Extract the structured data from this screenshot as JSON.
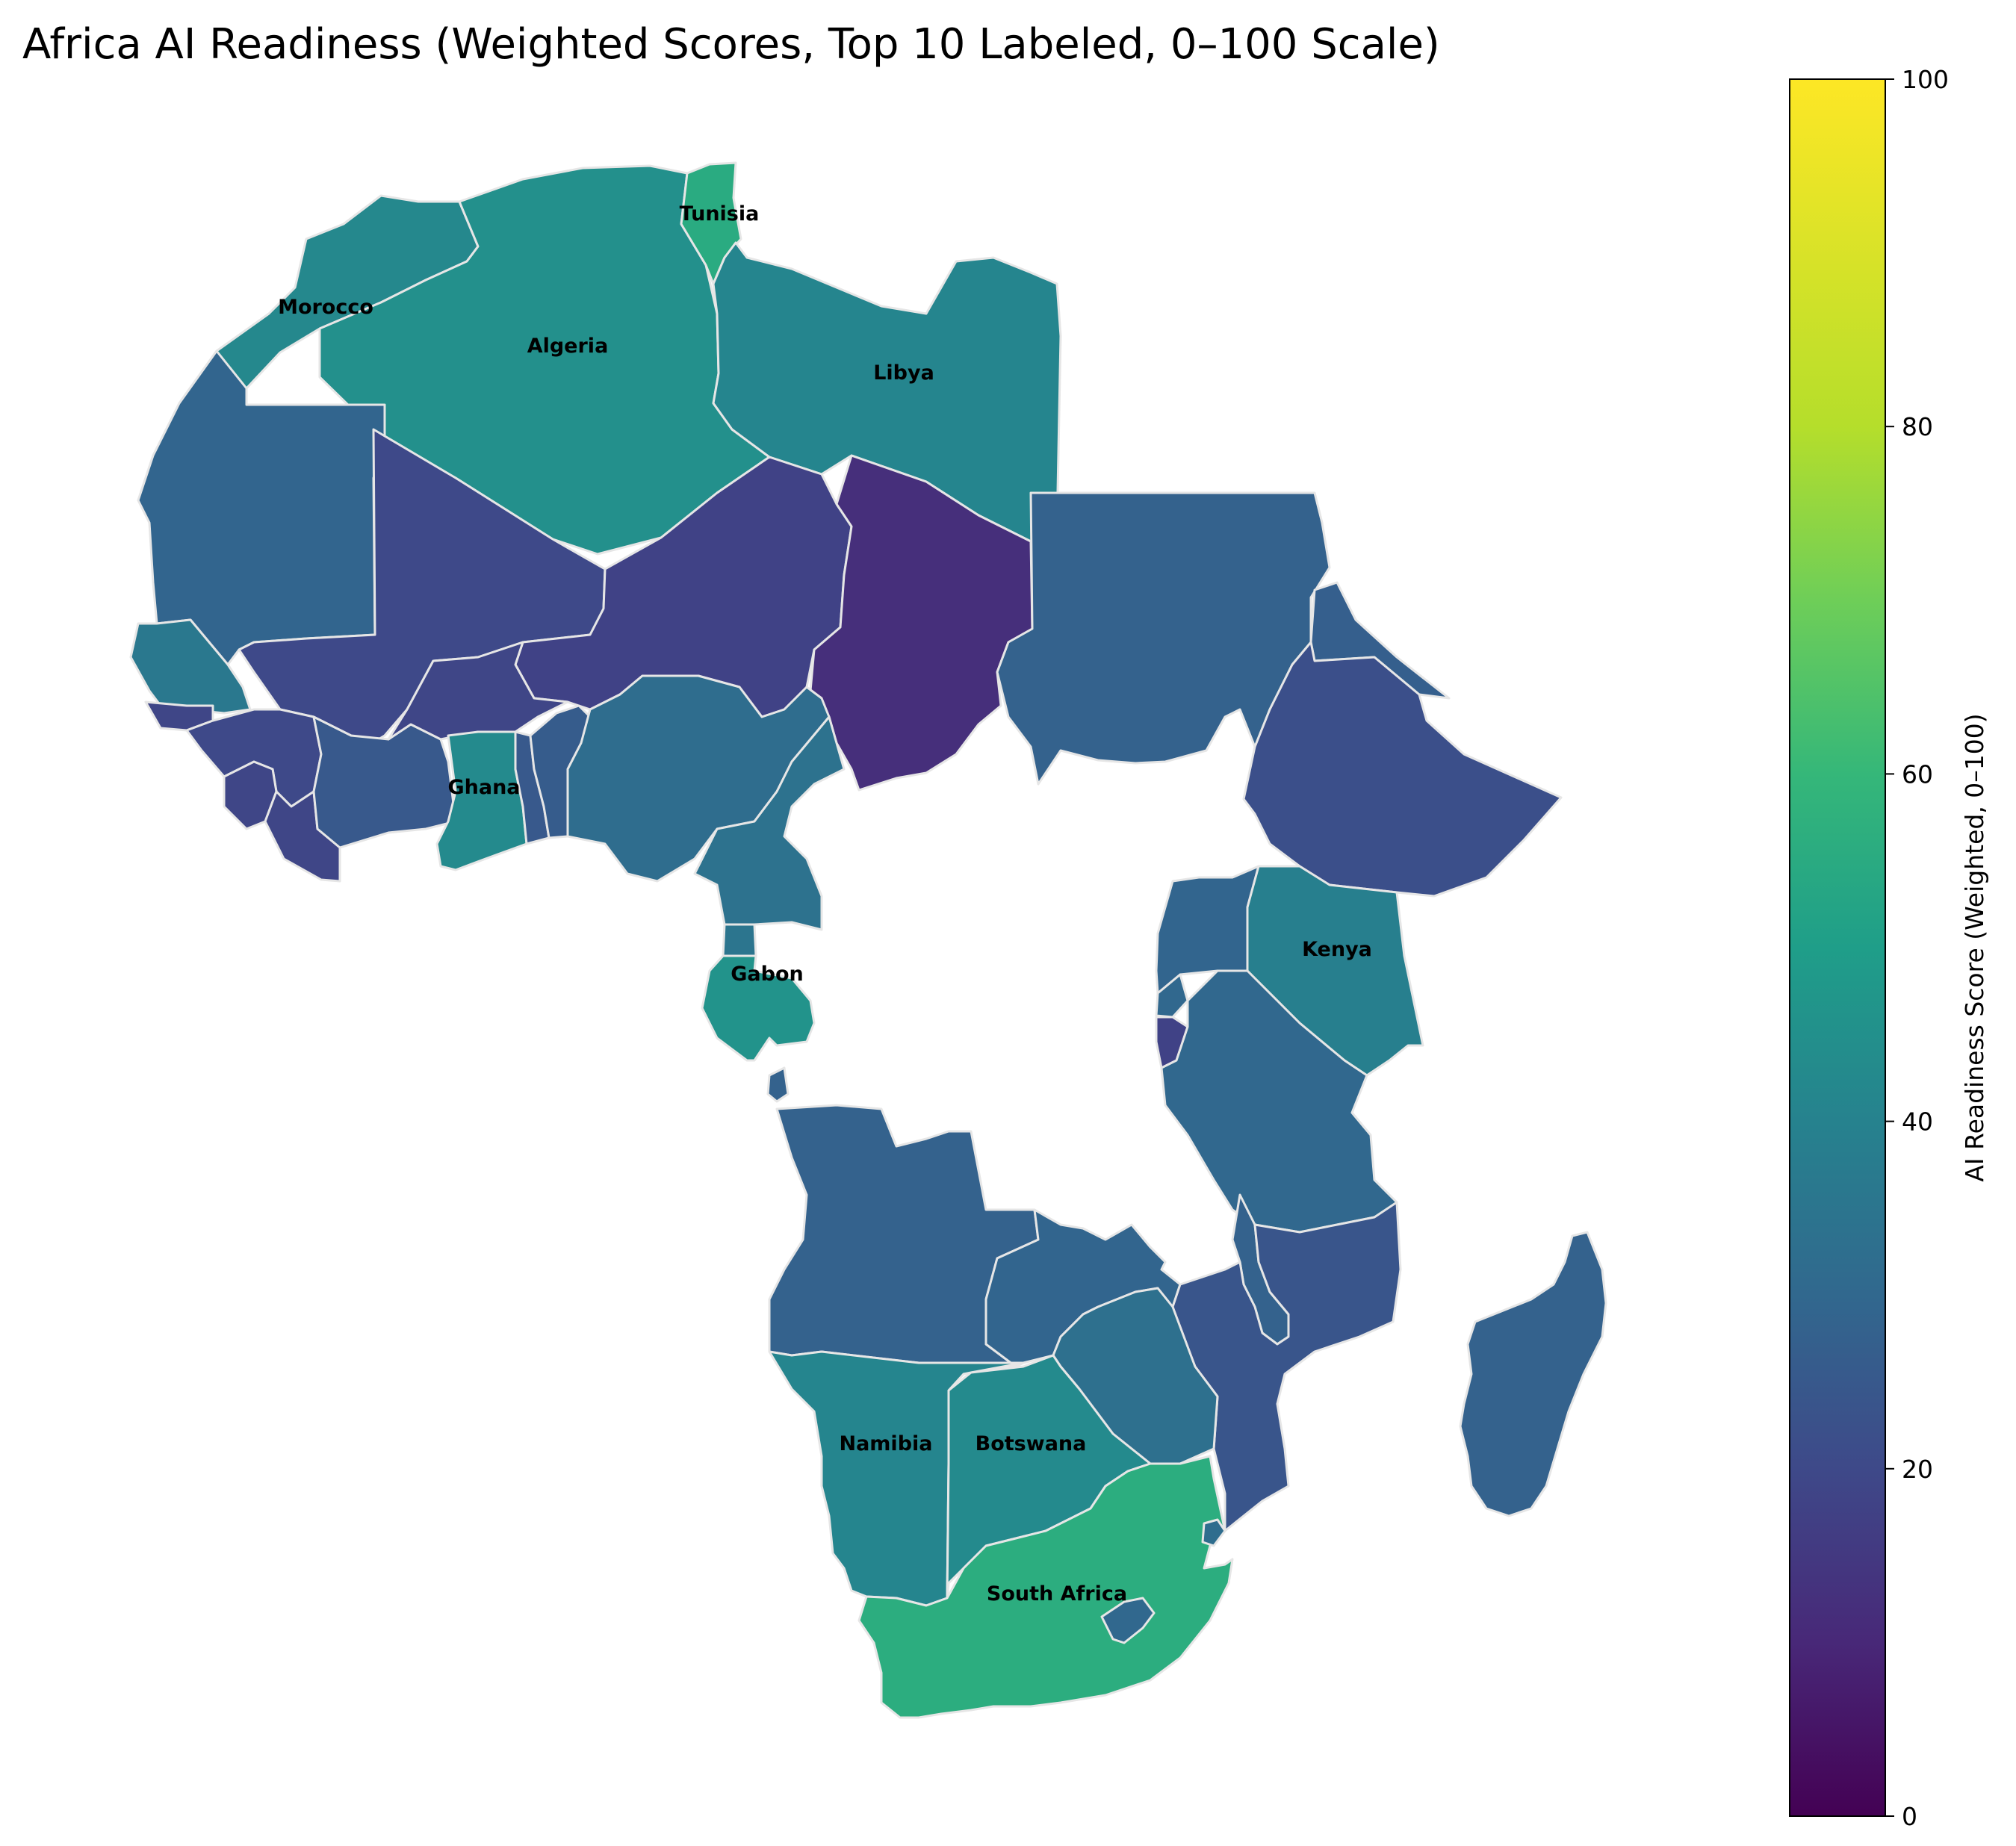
{
  "title": "Africa AI Readiness (Weighted Scores, Top 10 Labeled, 0–100 Scale)",
  "colorbar": {
    "label": "AI Readiness Score (Weighted, 0–100)",
    "min": 0,
    "max": 100,
    "ticks": [
      "0",
      "20",
      "40",
      "60",
      "80",
      "100"
    ],
    "colormap": "viridis"
  },
  "chart_data": {
    "type": "choropleth",
    "scale": [
      0,
      100
    ],
    "countries": [
      {
        "name": "Morocco",
        "value": 42,
        "labeled": true
      },
      {
        "name": "Algeria",
        "value": 45,
        "labeled": true
      },
      {
        "name": "Tunisia",
        "value": 55,
        "labeled": true
      },
      {
        "name": "Libya",
        "value": 41,
        "labeled": true
      },
      {
        "name": "Ghana",
        "value": 43,
        "labeled": true
      },
      {
        "name": "Gabon",
        "value": 46,
        "labeled": true
      },
      {
        "name": "Kenya",
        "value": 39,
        "labeled": true
      },
      {
        "name": "Namibia",
        "value": 41,
        "labeled": true
      },
      {
        "name": "Botswana",
        "value": 43,
        "labeled": true
      },
      {
        "name": "South Africa",
        "value": 56,
        "labeled": true
      },
      {
        "name": "Mauritania",
        "value": 29,
        "labeled": false
      },
      {
        "name": "Mali",
        "value": 20,
        "labeled": false
      },
      {
        "name": "Niger",
        "value": 18,
        "labeled": false
      },
      {
        "name": "Chad",
        "value": 12,
        "labeled": false
      },
      {
        "name": "Sudan",
        "value": 28,
        "labeled": false
      },
      {
        "name": "Eritrea",
        "value": 27,
        "labeled": false
      },
      {
        "name": "Ethiopia",
        "value": 22,
        "labeled": false
      },
      {
        "name": "Senegal",
        "value": 36,
        "labeled": false
      },
      {
        "name": "Guinea-Bissau",
        "value": 19,
        "labeled": false
      },
      {
        "name": "Guinea",
        "value": 20,
        "labeled": false
      },
      {
        "name": "Sierra Leone",
        "value": 19,
        "labeled": false
      },
      {
        "name": "Liberia",
        "value": 19,
        "labeled": false
      },
      {
        "name": "Burkina Faso",
        "value": 19,
        "labeled": false
      },
      {
        "name": "Togo",
        "value": 25,
        "labeled": false
      },
      {
        "name": "Benin",
        "value": 26,
        "labeled": false
      },
      {
        "name": "Nigeria",
        "value": 32,
        "labeled": false
      },
      {
        "name": "Cameroon",
        "value": 34,
        "labeled": false
      },
      {
        "name": "Equatorial Guinea",
        "value": 35,
        "labeled": false
      },
      {
        "name": "Uganda",
        "value": 29,
        "labeled": false
      },
      {
        "name": "Rwanda",
        "value": 30,
        "labeled": false
      },
      {
        "name": "Burundi",
        "value": 18,
        "labeled": false
      },
      {
        "name": "Tanzania",
        "value": 30,
        "labeled": false
      },
      {
        "name": "Angola",
        "value": 28,
        "labeled": false
      },
      {
        "name": "Zambia",
        "value": 29,
        "labeled": false
      },
      {
        "name": "Malawi",
        "value": 28,
        "labeled": false
      },
      {
        "name": "Mozambique",
        "value": 24,
        "labeled": false
      },
      {
        "name": "Zimbabwe",
        "value": 33,
        "labeled": false
      },
      {
        "name": "Madagascar",
        "value": 28,
        "labeled": false
      },
      {
        "name": "Lesotho",
        "value": 30,
        "labeled": false
      },
      {
        "name": "Eswatini",
        "value": 32,
        "labeled": false
      },
      {
        "name": "Cabinda",
        "value": 28,
        "labeled": false
      }
    ]
  }
}
